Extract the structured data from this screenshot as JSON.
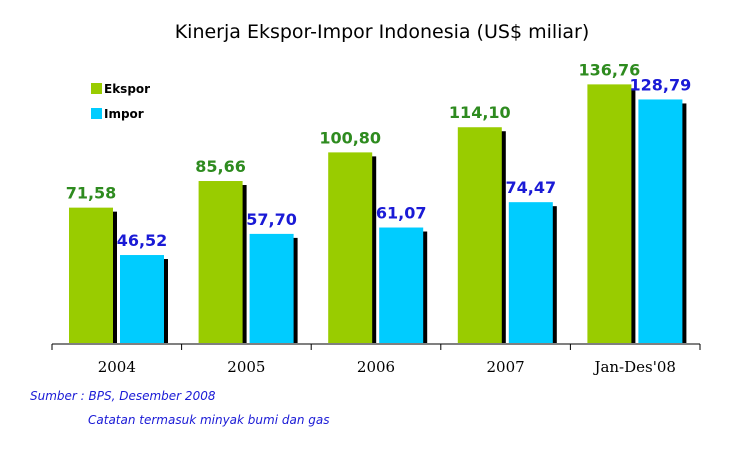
{
  "chart_data": {
    "type": "bar",
    "title": "Kinerja Ekspor-Impor Indonesia (US$ miliar)",
    "categories": [
      "2004",
      "2005",
      "2006",
      "2007",
      "Jan-Des'08"
    ],
    "series": [
      {
        "name": "Ekspor",
        "color": "#99cc00",
        "label_color": "#2e8b1f",
        "values": [
          71.58,
          85.66,
          100.8,
          114.1,
          136.76
        ],
        "labels": [
          "71,58",
          "85,66",
          "100,80",
          "114,10",
          "136,76"
        ]
      },
      {
        "name": "Impor",
        "color": "#00ccff",
        "label_color": "#1a1ad6",
        "values": [
          46.52,
          57.7,
          61.07,
          74.47,
          128.79
        ],
        "labels": [
          "46,52",
          "57,70",
          "61,07",
          "74,47",
          "128,79"
        ]
      }
    ],
    "ylim": [
      0,
      156
    ],
    "grid": false,
    "legend": "top-left"
  },
  "notes": {
    "source": "Sumber : BPS, Desember 2008",
    "caption": "Catatan termasuk minyak bumi dan gas"
  }
}
